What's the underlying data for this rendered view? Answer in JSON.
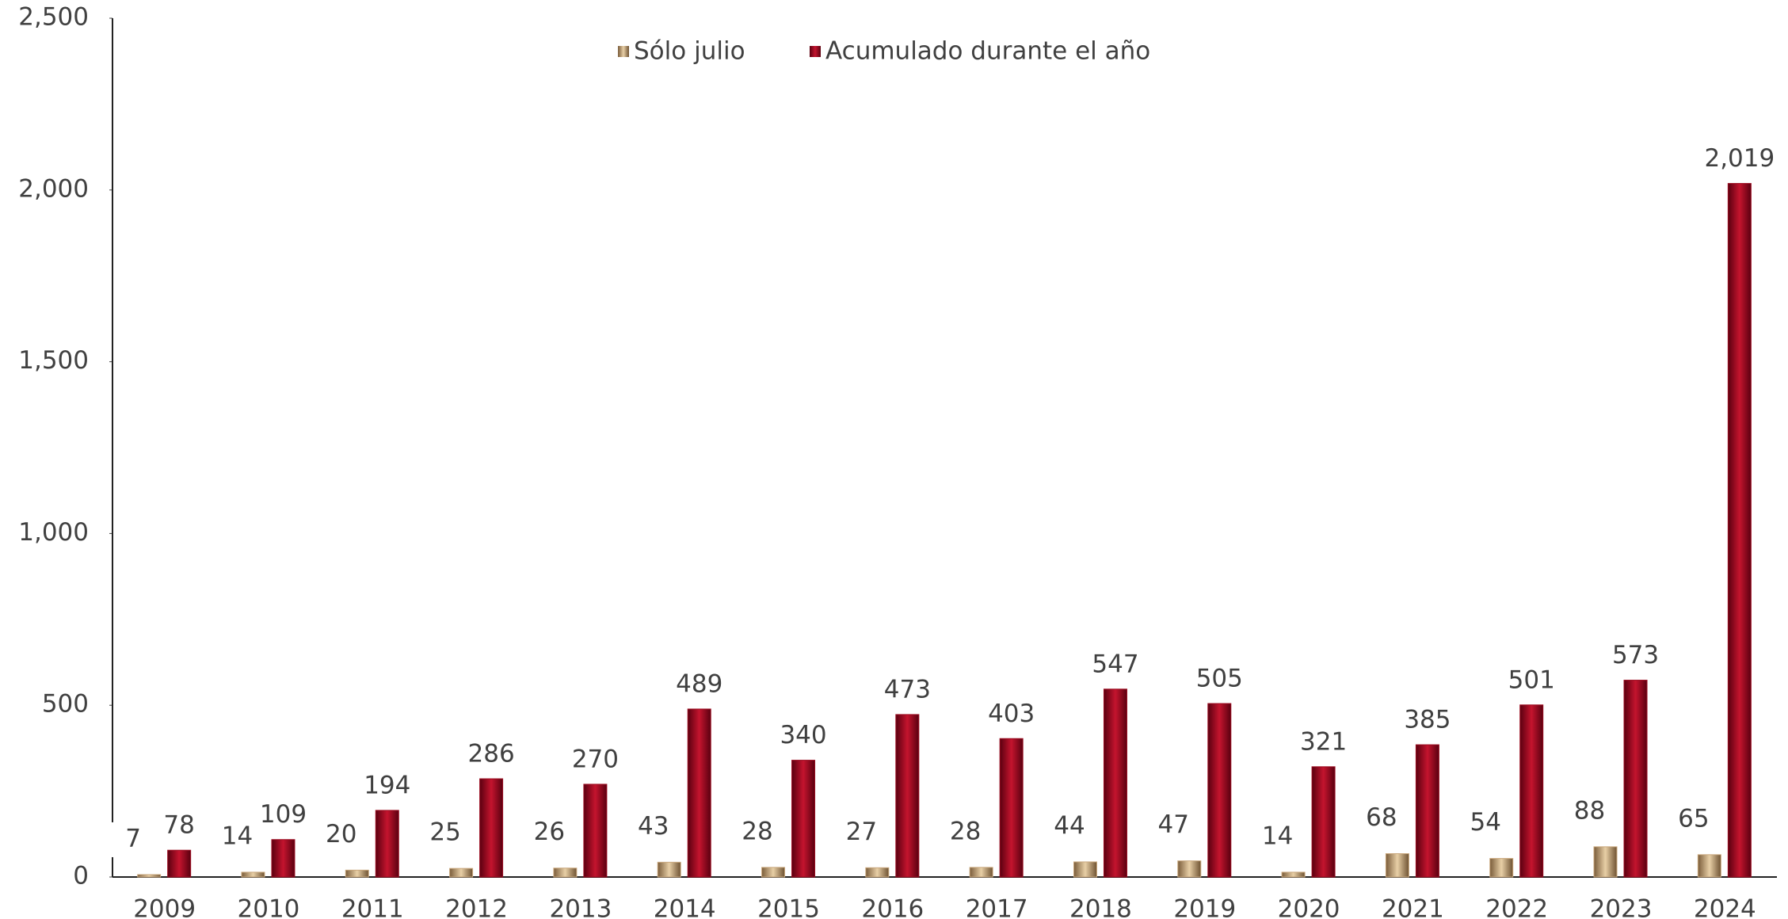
{
  "chart_data": {
    "type": "bar",
    "categories": [
      "2009",
      "2010",
      "2011",
      "2012",
      "2013",
      "2014",
      "2015",
      "2016",
      "2017",
      "2018",
      "2019",
      "2020",
      "2021",
      "2022",
      "2023",
      "2024"
    ],
    "series": [
      {
        "name": "Sólo julio",
        "color": "#c9a77c",
        "values": [
          7,
          14,
          20,
          25,
          26,
          43,
          28,
          27,
          28,
          44,
          47,
          14,
          68,
          54,
          88,
          65
        ]
      },
      {
        "name": "Acumulado durante el año",
        "color": "#9b0b1f",
        "values": [
          78,
          109,
          194,
          286,
          270,
          489,
          340,
          473,
          403,
          547,
          505,
          321,
          385,
          501,
          573,
          2019
        ],
        "value_labels": [
          "78",
          "109",
          "194",
          "286",
          "270",
          "489",
          "340",
          "473",
          "403",
          "547",
          "505",
          "321",
          "385",
          "501",
          "573",
          "2,019"
        ]
      }
    ],
    "ylim": [
      0,
      2500
    ],
    "yticks": [
      0,
      500,
      {
        "value": 1000,
        "label": "1,000"
      },
      {
        "value": 1500,
        "label": "1,500"
      },
      {
        "value": 2000,
        "label": "2,000"
      },
      {
        "value": 2500,
        "label": "2,500"
      }
    ],
    "legend": "top"
  }
}
